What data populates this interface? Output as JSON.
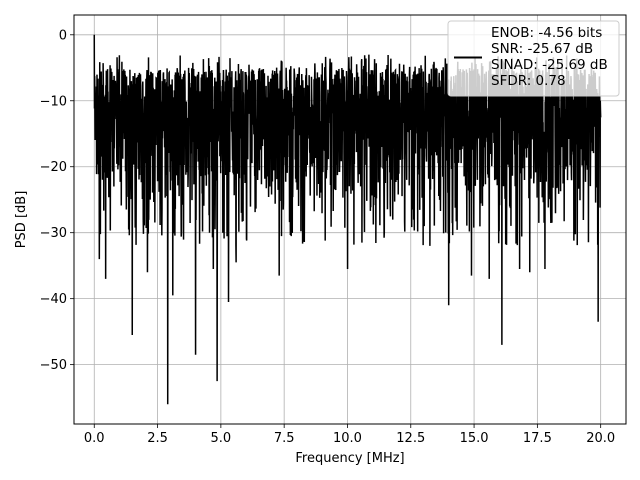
{
  "chart_data": {
    "type": "line",
    "title": "",
    "xlabel": "Frequency [MHz]",
    "ylabel": "PSD [dB]",
    "xlim": [
      -0.8,
      21.0
    ],
    "ylim": [
      -59.0,
      3.0
    ],
    "xticks": [
      0.0,
      2.5,
      5.0,
      7.5,
      10.0,
      12.5,
      15.0,
      17.5,
      20.0
    ],
    "xtick_labels": [
      "0.0",
      "2.5",
      "5.0",
      "7.5",
      "10.0",
      "12.5",
      "15.0",
      "17.5",
      "20.0"
    ],
    "yticks": [
      0,
      -10,
      -20,
      -30,
      -40,
      -50
    ],
    "ytick_labels": [
      "0",
      "−10",
      "−20",
      "−30",
      "−40",
      "−50"
    ],
    "grid": true,
    "legend_position": "upper right",
    "legend_lines": [
      "ENOB: -4.56 bits",
      "SNR: -25.67 dB",
      "SINAD: -25.69 dB",
      "SFDR: 0.78"
    ],
    "series": [
      {
        "color": "#000000",
        "description": "dense noisy power spectral density trace from 0 to 20 MHz",
        "x_range": [
          0.0,
          20.0
        ],
        "typical_band_db": [
          -28,
          -5
        ],
        "upper_envelope_db": -3,
        "start_peak_db": 0,
        "dips": [
          {
            "x": 0.2,
            "y": -34
          },
          {
            "x": 0.45,
            "y": -37
          },
          {
            "x": 1.5,
            "y": -45.5
          },
          {
            "x": 2.1,
            "y": -36
          },
          {
            "x": 2.9,
            "y": -56
          },
          {
            "x": 3.1,
            "y": -39.5
          },
          {
            "x": 4.0,
            "y": -48.5
          },
          {
            "x": 4.7,
            "y": -35.5
          },
          {
            "x": 4.85,
            "y": -52.5
          },
          {
            "x": 5.3,
            "y": -40.5
          },
          {
            "x": 5.6,
            "y": -34.5
          },
          {
            "x": 7.3,
            "y": -36.5
          },
          {
            "x": 10.0,
            "y": -35.5
          },
          {
            "x": 14.0,
            "y": -41
          },
          {
            "x": 14.9,
            "y": -36.5
          },
          {
            "x": 15.6,
            "y": -37
          },
          {
            "x": 16.1,
            "y": -47
          },
          {
            "x": 16.8,
            "y": -35.5
          },
          {
            "x": 17.2,
            "y": -36
          },
          {
            "x": 17.8,
            "y": -35.5
          },
          {
            "x": 19.9,
            "y": -43.5
          }
        ]
      }
    ]
  }
}
